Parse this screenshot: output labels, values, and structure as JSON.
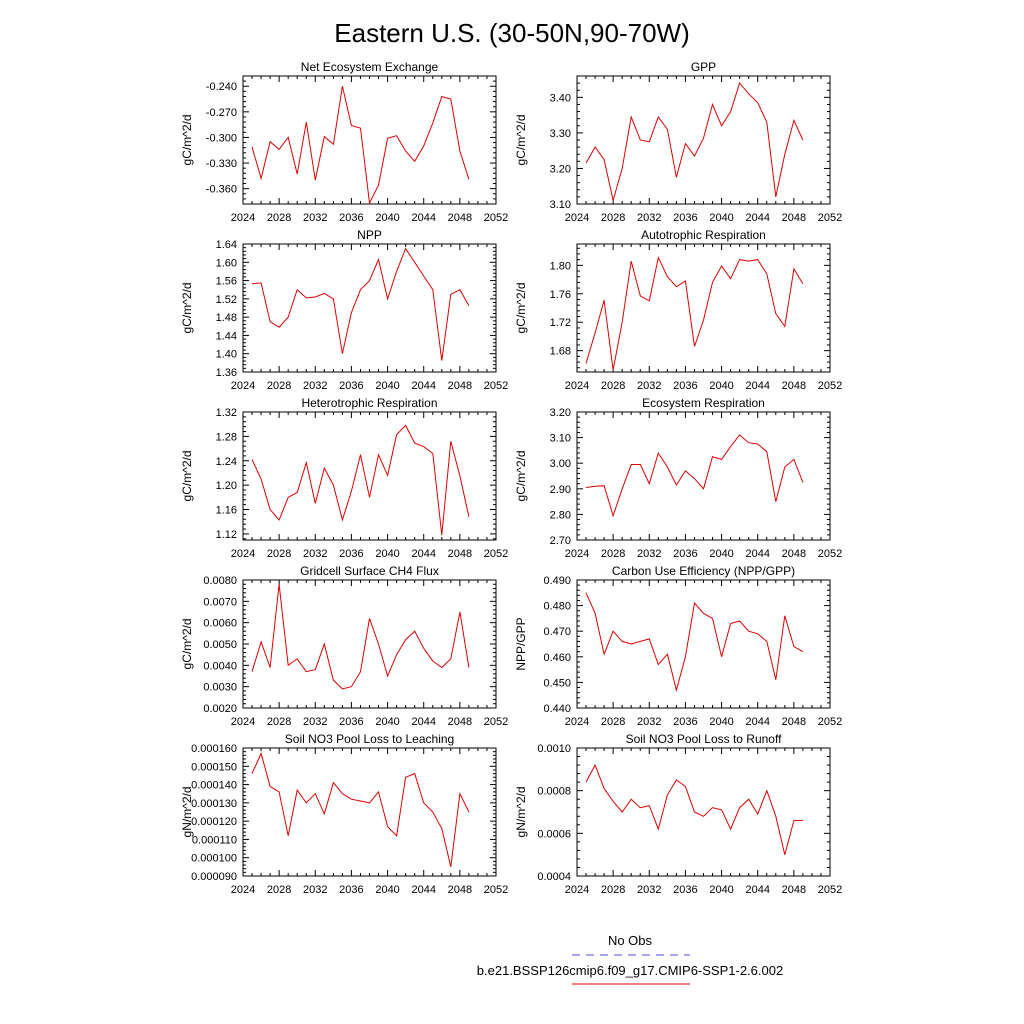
{
  "page_title": "Eastern U.S. (30-50N,90-70W)",
  "legend": {
    "obs_label": "No Obs",
    "obs_color": "#4a4adf",
    "model_label": "b.e21.BSSP126cmip6.f09_g17.CMIP6-SSP1-2.6.002",
    "model_color": "#e00000"
  },
  "chart_data": [
    {
      "type": "line",
      "title": "Net Ecosystem Exchange",
      "ylabel": "gC/m^2/d",
      "xlim": [
        2024,
        2052
      ],
      "xticks": [
        "2024",
        "2028",
        "2032",
        "2036",
        "2040",
        "2044",
        "2048",
        "2052"
      ],
      "ylim": [
        -0.378,
        -0.228
      ],
      "yticks": [
        "-0.240",
        "-0.270",
        "-0.300",
        "-0.330",
        "-0.360"
      ],
      "x": [
        2025,
        2026,
        2027,
        2028,
        2029,
        2030,
        2031,
        2032,
        2033,
        2034,
        2035,
        2036,
        2037,
        2038,
        2039,
        2040,
        2041,
        2042,
        2043,
        2044,
        2045,
        2046,
        2047,
        2048,
        2049
      ],
      "values": [
        -0.311,
        -0.348,
        -0.305,
        -0.314,
        -0.3,
        -0.343,
        -0.282,
        -0.35,
        -0.299,
        -0.308,
        -0.24,
        -0.286,
        -0.289,
        -0.377,
        -0.356,
        -0.301,
        -0.298,
        -0.316,
        -0.328,
        -0.31,
        -0.283,
        -0.252,
        -0.255,
        -0.316,
        -0.349
      ]
    },
    {
      "type": "line",
      "title": "GPP",
      "ylabel": "gC/m^2/d",
      "xlim": [
        2024,
        2052
      ],
      "xticks": [
        "2024",
        "2028",
        "2032",
        "2036",
        "2040",
        "2044",
        "2048",
        "2052"
      ],
      "ylim": [
        3.1,
        3.46
      ],
      "yticks": [
        "3.10",
        "3.20",
        "3.30",
        "3.40"
      ],
      "x": [
        2025,
        2026,
        2027,
        2028,
        2029,
        2030,
        2031,
        2032,
        2033,
        2034,
        2035,
        2036,
        2037,
        2038,
        2039,
        2040,
        2041,
        2042,
        2043,
        2044,
        2045,
        2046,
        2047,
        2048,
        2049
      ],
      "values": [
        3.215,
        3.26,
        3.225,
        3.11,
        3.2,
        3.345,
        3.28,
        3.275,
        3.345,
        3.31,
        3.175,
        3.27,
        3.235,
        3.285,
        3.38,
        3.32,
        3.36,
        3.44,
        3.41,
        3.385,
        3.33,
        3.12,
        3.24,
        3.335,
        3.28
      ]
    },
    {
      "type": "line",
      "title": "NPP",
      "ylabel": "gC/m^2/d",
      "xlim": [
        2024,
        2052
      ],
      "xticks": [
        "2024",
        "2028",
        "2032",
        "2036",
        "2040",
        "2044",
        "2048",
        "2052"
      ],
      "ylim": [
        1.36,
        1.64
      ],
      "yticks": [
        "1.36",
        "1.40",
        "1.44",
        "1.48",
        "1.52",
        "1.56",
        "1.60",
        "1.64"
      ],
      "x": [
        2025,
        2026,
        2027,
        2028,
        2029,
        2030,
        2031,
        2032,
        2033,
        2034,
        2035,
        2036,
        2037,
        2038,
        2039,
        2040,
        2041,
        2042,
        2043,
        2044,
        2045,
        2046,
        2047,
        2048,
        2049
      ],
      "values": [
        1.553,
        1.555,
        1.47,
        1.458,
        1.48,
        1.54,
        1.522,
        1.524,
        1.532,
        1.52,
        1.4,
        1.49,
        1.54,
        1.56,
        1.606,
        1.52,
        1.58,
        1.63,
        1.6,
        1.57,
        1.54,
        1.385,
        1.53,
        1.54,
        1.505
      ]
    },
    {
      "type": "line",
      "title": "Autotrophic Respiration",
      "ylabel": "gC/m^2/d",
      "xlim": [
        2024,
        2052
      ],
      "xticks": [
        "2024",
        "2028",
        "2032",
        "2036",
        "2040",
        "2044",
        "2048",
        "2052"
      ],
      "ylim": [
        1.65,
        1.83
      ],
      "yticks": [
        "1.68",
        "1.72",
        "1.76",
        "1.80"
      ],
      "x": [
        2025,
        2026,
        2027,
        2028,
        2029,
        2030,
        2031,
        2032,
        2033,
        2034,
        2035,
        2036,
        2037,
        2038,
        2039,
        2040,
        2041,
        2042,
        2043,
        2044,
        2045,
        2046,
        2047,
        2048,
        2049
      ],
      "values": [
        1.662,
        1.705,
        1.751,
        1.653,
        1.72,
        1.806,
        1.757,
        1.75,
        1.811,
        1.784,
        1.77,
        1.778,
        1.686,
        1.723,
        1.776,
        1.799,
        1.781,
        1.808,
        1.806,
        1.808,
        1.788,
        1.732,
        1.714,
        1.795,
        1.774
      ]
    },
    {
      "type": "line",
      "title": "Heterotrophic Respiration",
      "ylabel": "gC/m^2/d",
      "xlim": [
        2024,
        2052
      ],
      "xticks": [
        "2024",
        "2028",
        "2032",
        "2036",
        "2040",
        "2044",
        "2048",
        "2052"
      ],
      "ylim": [
        1.11,
        1.32
      ],
      "yticks": [
        "1.12",
        "1.16",
        "1.20",
        "1.24",
        "1.28",
        "1.32"
      ],
      "x": [
        2025,
        2026,
        2027,
        2028,
        2029,
        2030,
        2031,
        2032,
        2033,
        2034,
        2035,
        2036,
        2037,
        2038,
        2039,
        2040,
        2041,
        2042,
        2043,
        2044,
        2045,
        2046,
        2047,
        2048,
        2049
      ],
      "values": [
        1.242,
        1.21,
        1.16,
        1.143,
        1.18,
        1.188,
        1.237,
        1.17,
        1.228,
        1.2,
        1.143,
        1.19,
        1.25,
        1.18,
        1.25,
        1.216,
        1.283,
        1.298,
        1.269,
        1.263,
        1.252,
        1.118,
        1.272,
        1.215,
        1.148
      ]
    },
    {
      "type": "line",
      "title": "Ecosystem Respiration",
      "ylabel": "gC/m^2/d",
      "xlim": [
        2024,
        2052
      ],
      "xticks": [
        "2024",
        "2028",
        "2032",
        "2036",
        "2040",
        "2044",
        "2048",
        "2052"
      ],
      "ylim": [
        2.7,
        3.2
      ],
      "yticks": [
        "2.70",
        "2.80",
        "2.90",
        "3.00",
        "3.10",
        "3.20"
      ],
      "x": [
        2025,
        2026,
        2027,
        2028,
        2029,
        2030,
        2031,
        2032,
        2033,
        2034,
        2035,
        2036,
        2037,
        2038,
        2039,
        2040,
        2041,
        2042,
        2043,
        2044,
        2045,
        2046,
        2047,
        2048,
        2049
      ],
      "values": [
        2.905,
        2.91,
        2.912,
        2.795,
        2.9,
        2.995,
        2.995,
        2.92,
        3.04,
        2.985,
        2.915,
        2.97,
        2.94,
        2.9,
        3.025,
        3.015,
        3.065,
        3.11,
        3.08,
        3.075,
        3.045,
        2.85,
        2.985,
        3.015,
        2.925
      ]
    },
    {
      "type": "line",
      "title": "Gridcell Surface CH4 Flux",
      "ylabel": "gC/m^2/d",
      "xlim": [
        2024,
        2052
      ],
      "xticks": [
        "2024",
        "2028",
        "2032",
        "2036",
        "2040",
        "2044",
        "2048",
        "2052"
      ],
      "ylim": [
        0.002,
        0.008
      ],
      "yticks": [
        "0.0020",
        "0.0030",
        "0.0040",
        "0.0050",
        "0.0060",
        "0.0070",
        "0.0080"
      ],
      "x": [
        2025,
        2026,
        2027,
        2028,
        2029,
        2030,
        2031,
        2032,
        2033,
        2034,
        2035,
        2036,
        2037,
        2038,
        2039,
        2040,
        2041,
        2042,
        2043,
        2044,
        2045,
        2046,
        2047,
        2048,
        2049
      ],
      "values": [
        0.0037,
        0.0051,
        0.0039,
        0.0078,
        0.004,
        0.0043,
        0.0037,
        0.0038,
        0.005,
        0.0033,
        0.0029,
        0.003,
        0.0037,
        0.0062,
        0.005,
        0.0035,
        0.0045,
        0.0052,
        0.0056,
        0.0048,
        0.0042,
        0.0039,
        0.0043,
        0.0065,
        0.0039
      ]
    },
    {
      "type": "line",
      "title": "Carbon Use Efficiency (NPP/GPP)",
      "ylabel": "NPP/GPP",
      "xlim": [
        2024,
        2052
      ],
      "xticks": [
        "2024",
        "2028",
        "2032",
        "2036",
        "2040",
        "2044",
        "2048",
        "2052"
      ],
      "ylim": [
        0.44,
        0.49
      ],
      "yticks": [
        "0.440",
        "0.450",
        "0.460",
        "0.470",
        "0.480",
        "0.490"
      ],
      "x": [
        2025,
        2026,
        2027,
        2028,
        2029,
        2030,
        2031,
        2032,
        2033,
        2034,
        2035,
        2036,
        2037,
        2038,
        2039,
        2040,
        2041,
        2042,
        2043,
        2044,
        2045,
        2046,
        2047,
        2048,
        2049
      ],
      "values": [
        0.485,
        0.477,
        0.461,
        0.47,
        0.466,
        0.465,
        0.466,
        0.467,
        0.457,
        0.461,
        0.447,
        0.46,
        0.481,
        0.477,
        0.475,
        0.46,
        0.473,
        0.474,
        0.47,
        0.469,
        0.466,
        0.451,
        0.476,
        0.464,
        0.462
      ]
    },
    {
      "type": "line",
      "title": "Soil NO3 Pool Loss to Leaching",
      "ylabel": "gN/m^2/d",
      "xlim": [
        2024,
        2052
      ],
      "xticks": [
        "2024",
        "2028",
        "2032",
        "2036",
        "2040",
        "2044",
        "2048",
        "2052"
      ],
      "ylim": [
        9e-05,
        0.00016
      ],
      "yticks": [
        "0.000090",
        "0.000100",
        "0.000110",
        "0.000120",
        "0.000130",
        "0.000140",
        "0.000150",
        "0.000160"
      ],
      "x": [
        2025,
        2026,
        2027,
        2028,
        2029,
        2030,
        2031,
        2032,
        2033,
        2034,
        2035,
        2036,
        2037,
        2038,
        2039,
        2040,
        2041,
        2042,
        2043,
        2044,
        2045,
        2046,
        2047,
        2048,
        2049
      ],
      "values": [
        0.000146,
        0.000157,
        0.000139,
        0.000136,
        0.000112,
        0.000137,
        0.00013,
        0.000135,
        0.000124,
        0.000141,
        0.000135,
        0.000132,
        0.000131,
        0.00013,
        0.000136,
        0.000117,
        0.000112,
        0.000144,
        0.000146,
        0.00013,
        0.000125,
        0.000116,
        9.5e-05,
        0.000135,
        0.000125
      ]
    },
    {
      "type": "line",
      "title": "Soil NO3 Pool Loss to Runoff",
      "ylabel": "gN/m^2/d",
      "xlim": [
        2024,
        2052
      ],
      "xticks": [
        "2024",
        "2028",
        "2032",
        "2036",
        "2040",
        "2044",
        "2048",
        "2052"
      ],
      "ylim": [
        0.0004,
        0.001
      ],
      "yticks": [
        "0.0004",
        "0.0006",
        "0.0008",
        "0.0010"
      ],
      "x": [
        2025,
        2026,
        2027,
        2028,
        2029,
        2030,
        2031,
        2032,
        2033,
        2034,
        2035,
        2036,
        2037,
        2038,
        2039,
        2040,
        2041,
        2042,
        2043,
        2044,
        2045,
        2046,
        2047,
        2048,
        2049
      ],
      "values": [
        0.00084,
        0.00092,
        0.00081,
        0.00075,
        0.0007,
        0.00076,
        0.00072,
        0.00073,
        0.00062,
        0.00078,
        0.00085,
        0.00082,
        0.0007,
        0.00068,
        0.00072,
        0.00071,
        0.00062,
        0.00072,
        0.00076,
        0.00069,
        0.0008,
        0.00068,
        0.0005,
        0.00066,
        0.00066
      ]
    }
  ]
}
